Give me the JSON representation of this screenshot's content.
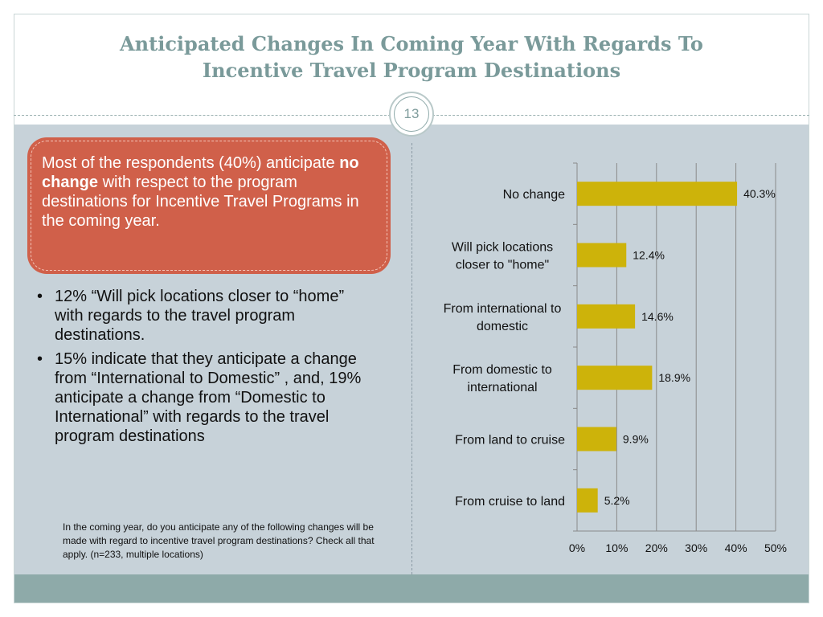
{
  "slide": {
    "title_line1": "Anticipated Changes In Coming Year With Regards To",
    "title_line2": "Incentive Travel Program Destinations",
    "number": "13"
  },
  "callout": {
    "part1": "Most of the respondents (40%) anticipate ",
    "bold": "no change",
    "part2": " with respect to the program destinations for Incentive Travel Programs in the coming year."
  },
  "bullets": [
    {
      "marker": "•",
      "text": "12% “Will pick locations closer to “home” with regards to the travel program destinations."
    },
    {
      "marker": "•",
      "text": "15% indicate that they anticipate a change from “International to Domestic” , and, 19% anticipate a change from “Domestic to International” with regards to the travel program destinations"
    }
  ],
  "note": "In the coming year, do you anticipate any of the following changes will be made with regard to incentive travel program destinations?  Check all that apply. (n=233, multiple locations)",
  "chart_data": {
    "type": "bar",
    "orientation": "horizontal",
    "categories": [
      [
        "No change"
      ],
      [
        "Will pick locations",
        "closer to \"home\""
      ],
      [
        "From international to",
        "domestic"
      ],
      [
        "From domestic to",
        "international"
      ],
      [
        "From land to cruise"
      ],
      [
        "From cruise to land"
      ]
    ],
    "values": [
      40.3,
      12.4,
      14.6,
      18.9,
      9.9,
      5.2
    ],
    "data_labels": [
      "40.3%",
      "12.4%",
      "14.6%",
      "18.9%",
      "9.9%",
      "5.2%"
    ],
    "xlim": [
      0,
      50
    ],
    "xticks": [
      0,
      10,
      20,
      30,
      40,
      50
    ],
    "xtick_labels": [
      "0%",
      "10%",
      "20%",
      "30%",
      "40%",
      "50%"
    ],
    "grid": true,
    "bar_color": "#cdb30a"
  }
}
